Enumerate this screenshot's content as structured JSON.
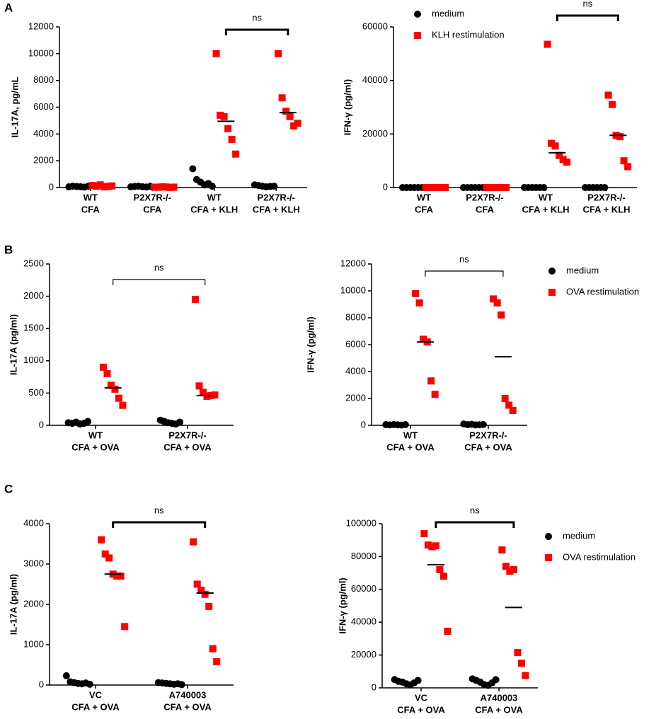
{
  "panel_labels": [
    "A",
    "B",
    "C"
  ],
  "chart_data": [
    {
      "type": "dot",
      "ylabel": "IL-17A, pg/mL",
      "ylim": [
        0,
        12000
      ],
      "yticks": [
        0,
        2000,
        4000,
        6000,
        8000,
        10000,
        12000
      ],
      "categories": [
        [
          "WT",
          "CFA"
        ],
        [
          "P2X7R-/-",
          "CFA"
        ],
        [
          "WT",
          "CFA + KLH"
        ],
        [
          "P2X7R-/-",
          "CFA + KLH"
        ]
      ],
      "annotation": "ns",
      "series": [
        {
          "color": "#000000",
          "marker": "circle",
          "values": [
            [
              50,
              100,
              80,
              60,
              30,
              100
            ],
            [
              50,
              80,
              100,
              60,
              40,
              90
            ],
            [
              1400,
              600,
              400,
              200,
              300,
              100
            ],
            [
              200,
              150,
              100,
              50,
              80,
              100
            ]
          ]
        },
        {
          "color": "#ff0000",
          "marker": "square",
          "values": [
            [
              150,
              100,
              200,
              50,
              80,
              120
            ],
            [
              30,
              20,
              50,
              40,
              10,
              30
            ],
            [
              10000,
              5400,
              5300,
              4400,
              3600,
              2500
            ],
            [
              10000,
              6700,
              5700,
              5300,
              4600,
              4800
            ]
          ],
          "means": [
            null,
            null,
            4950,
            5600
          ]
        }
      ]
    },
    {
      "type": "dot",
      "ylabel": "IFN-γ (pg/ml)",
      "ylim": [
        0,
        60000
      ],
      "yticks": [
        0,
        20000,
        40000,
        60000
      ],
      "categories": [
        [
          "WT",
          "CFA"
        ],
        [
          "P2X7R-/-",
          "CFA"
        ],
        [
          "WT",
          "CFA + KLH"
        ],
        [
          "P2X7R-/-",
          "CFA + KLH"
        ]
      ],
      "annotation": "ns",
      "legend": "top-left",
      "series": [
        {
          "name": "medium",
          "color": "#000000",
          "marker": "circle",
          "values": [
            [
              0,
              0,
              0,
              0,
              0,
              0
            ],
            [
              0,
              0,
              0,
              0,
              0,
              0
            ],
            [
              0,
              0,
              0,
              0,
              0,
              0
            ],
            [
              0,
              0,
              0,
              0,
              0,
              0
            ]
          ]
        },
        {
          "name": "KLH restimulation",
          "color": "#ff0000",
          "marker": "square",
          "values": [
            [
              0,
              0,
              0,
              0,
              0,
              0
            ],
            [
              0,
              0,
              0,
              0,
              0,
              0
            ],
            [
              53500,
              16500,
              15500,
              12000,
              10500,
              9500
            ],
            [
              34500,
              31000,
              19500,
              19000,
              10000,
              7800
            ]
          ],
          "means": [
            null,
            null,
            13000,
            19500
          ]
        }
      ]
    },
    {
      "type": "dot",
      "ylabel": "IL-17A (pg/ml)",
      "ylim": [
        0,
        2500
      ],
      "yticks": [
        0,
        500,
        1000,
        1500,
        2000,
        2500
      ],
      "categories": [
        [
          "WT",
          "CFA + OVA"
        ],
        [
          "P2X7R-/-",
          "CFA + OVA"
        ]
      ],
      "annotation": "ns",
      "series": [
        {
          "color": "#000000",
          "marker": "circle",
          "values": [
            [
              40,
              30,
              50,
              20,
              30,
              60
            ],
            [
              80,
              60,
              40,
              30,
              20,
              50
            ]
          ]
        },
        {
          "color": "#ff0000",
          "marker": "square",
          "values": [
            [
              900,
              800,
              620,
              560,
              420,
              310
            ],
            [
              1950,
              610,
              510,
              450,
              460,
              470
            ]
          ],
          "means": [
            580,
            460
          ]
        }
      ]
    },
    {
      "type": "dot",
      "ylabel": "IFN-γ (pg/ml)",
      "ylim": [
        0,
        12000
      ],
      "yticks": [
        0,
        2000,
        4000,
        6000,
        8000,
        10000,
        12000
      ],
      "categories": [
        [
          "WT",
          "CFA + OVA"
        ],
        [
          "P2X7R-/-",
          "CFA + OVA"
        ]
      ],
      "annotation": "ns",
      "legend": "right",
      "series": [
        {
          "name": "medium",
          "color": "#000000",
          "marker": "circle",
          "values": [
            [
              50,
              30,
              60,
              40,
              20,
              50
            ],
            [
              100,
              50,
              80,
              30,
              40,
              60
            ]
          ]
        },
        {
          "name": "OVA restimulation",
          "color": "#ff0000",
          "marker": "square",
          "values": [
            [
              9800,
              9100,
              6400,
              6200,
              3300,
              2300
            ],
            [
              9400,
              9100,
              8200,
              2000,
              1500,
              1100
            ]
          ],
          "means": [
            6200,
            5100
          ]
        }
      ]
    },
    {
      "type": "dot",
      "ylabel": "IL-17A (pg/ml)",
      "ylim": [
        0,
        4000
      ],
      "yticks": [
        0,
        1000,
        2000,
        3000,
        4000
      ],
      "categories": [
        [
          "VC",
          "CFA + OVA"
        ],
        [
          "A740003",
          "CFA + OVA"
        ]
      ],
      "annotation": "ns",
      "series": [
        {
          "color": "#000000",
          "marker": "circle",
          "values": [
            [
              230,
              80,
              60,
              40,
              30,
              50,
              20
            ],
            [
              60,
              50,
              40,
              30,
              20,
              30,
              10
            ]
          ]
        },
        {
          "color": "#ff0000",
          "marker": "square",
          "values": [
            [
              3600,
              3250,
              3150,
              2750,
              2700,
              2700,
              1450
            ],
            [
              3550,
              2500,
              2350,
              2250,
              1950,
              900,
              580
            ]
          ],
          "means": [
            2750,
            2280
          ]
        }
      ]
    },
    {
      "type": "dot",
      "ylabel": "IFN-γ (pg/ml)",
      "ylim": [
        0,
        100000
      ],
      "yticks": [
        0,
        20000,
        40000,
        60000,
        80000,
        100000
      ],
      "categories": [
        [
          "VC",
          "CFA + OVA"
        ],
        [
          "A740003",
          "CFA + OVA"
        ]
      ],
      "annotation": "ns",
      "legend": "right",
      "series": [
        {
          "name": "medium",
          "color": "#000000",
          "marker": "circle",
          "values": [
            [
              5000,
              4000,
              3500,
              2500,
              1800,
              3000,
              4500
            ],
            [
              5500,
              4500,
              3500,
              2000,
              1500,
              3000,
              5000
            ]
          ]
        },
        {
          "name": "OVA restimulation",
          "color": "#ff0000",
          "marker": "square",
          "values": [
            [
              94000,
              87000,
              86000,
              86500,
              72000,
              68000,
              34500
            ],
            [
              84000,
              74000,
              71000,
              72000,
              21500,
              15000,
              7500
            ]
          ],
          "means": [
            75000,
            49000
          ]
        }
      ]
    }
  ]
}
